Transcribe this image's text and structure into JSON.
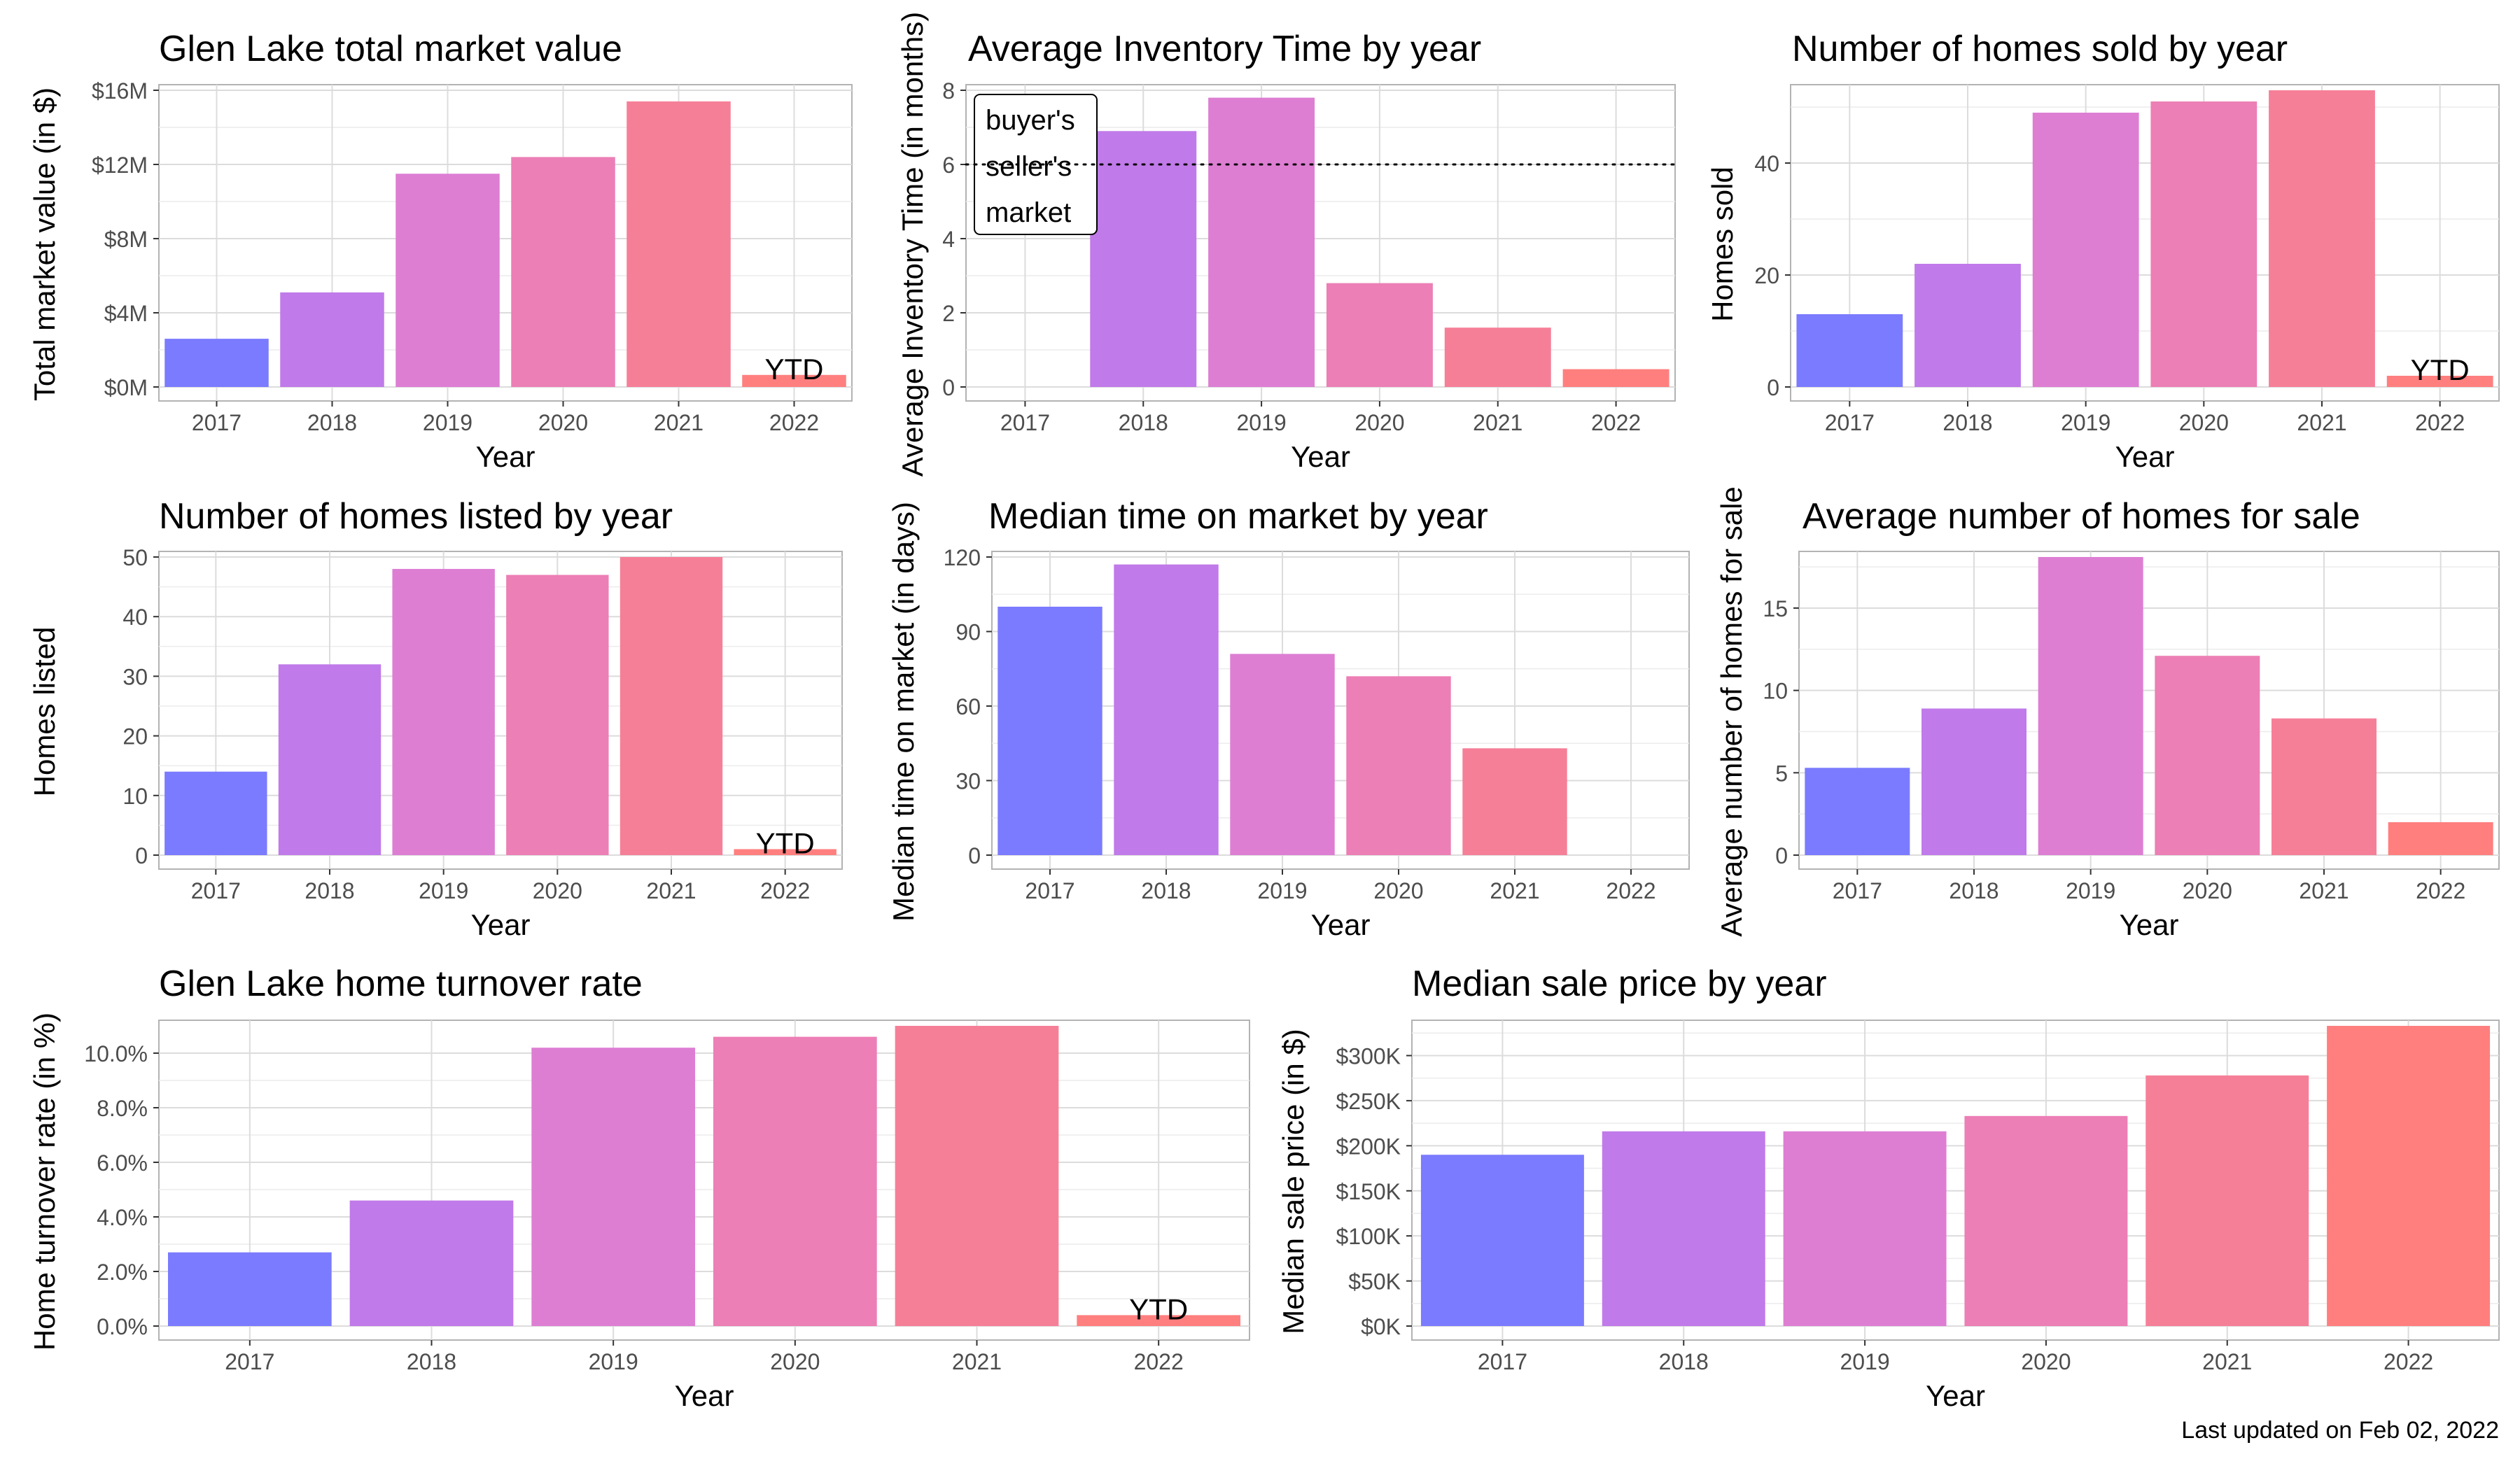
{
  "footer": {
    "updated": "Last updated on Feb 02, 2022"
  },
  "colors": [
    "#7b7bff",
    "#c07ae9",
    "#dd7ed3",
    "#ec7fb5",
    "#f67f98",
    "#ff7f7f"
  ],
  "chart_data": [
    {
      "id": "market-value",
      "type": "bar",
      "title": "Glen Lake total market value",
      "xlabel": "Year",
      "ylabel": "Total market value (in $)",
      "categories": [
        "2017",
        "2018",
        "2019",
        "2020",
        "2021",
        "2022"
      ],
      "values": [
        2600000,
        5100000,
        11500000,
        12400000,
        15400000,
        650000
      ],
      "ylim": [
        0,
        16000000
      ],
      "yticks": [
        0,
        4000000,
        8000000,
        12000000,
        16000000
      ],
      "ytick_labels": [
        "$0M",
        "$4M",
        "$8M",
        "$12M",
        "$16M"
      ],
      "annotation": {
        "label": "YTD",
        "category": "2022"
      }
    },
    {
      "id": "inventory-time",
      "type": "bar",
      "title": "Average Inventory Time by year",
      "xlabel": "Year",
      "ylabel": "Average Inventory Time (in months)",
      "categories": [
        "2017",
        "2018",
        "2019",
        "2020",
        "2021",
        "2022"
      ],
      "values": [
        null,
        6.9,
        7.8,
        2.8,
        1.6,
        0.48
      ],
      "ylim": [
        0,
        8
      ],
      "yticks": [
        0,
        2,
        4,
        6,
        8
      ],
      "ytick_labels": [
        "0",
        "2",
        "4",
        "6",
        "8"
      ],
      "reference_line": {
        "y": 6,
        "style": "dotted"
      },
      "label_box": [
        "buyer's",
        "seller's",
        "market"
      ]
    },
    {
      "id": "homes-sold",
      "type": "bar",
      "title": "Number of homes sold by year",
      "xlabel": "Year",
      "ylabel": "Homes sold",
      "categories": [
        "2017",
        "2018",
        "2019",
        "2020",
        "2021",
        "2022"
      ],
      "values": [
        13,
        22,
        49,
        51,
        53,
        2
      ],
      "ylim": [
        0,
        53
      ],
      "yticks": [
        0,
        20,
        40
      ],
      "ytick_labels": [
        "0",
        "20",
        "40"
      ],
      "annotation": {
        "label": "YTD",
        "category": "2022"
      }
    },
    {
      "id": "homes-listed",
      "type": "bar",
      "title": "Number of homes listed by year",
      "xlabel": "Year",
      "ylabel": "Homes listed",
      "categories": [
        "2017",
        "2018",
        "2019",
        "2020",
        "2021",
        "2022"
      ],
      "values": [
        14,
        32,
        48,
        47,
        50,
        1
      ],
      "ylim": [
        0,
        50
      ],
      "yticks": [
        0,
        10,
        20,
        30,
        40,
        50
      ],
      "ytick_labels": [
        "0",
        "10",
        "20",
        "30",
        "40",
        "50"
      ],
      "annotation": {
        "label": "YTD",
        "category": "2022"
      }
    },
    {
      "id": "time-on-market",
      "type": "bar",
      "title": "Median time on market by year",
      "xlabel": "Year",
      "ylabel": "Median time on market (in days)",
      "categories": [
        "2017",
        "2018",
        "2019",
        "2020",
        "2021",
        "2022"
      ],
      "values": [
        100,
        117,
        81,
        72,
        43,
        null
      ],
      "ylim": [
        0,
        120
      ],
      "yticks": [
        0,
        30,
        60,
        90,
        120
      ],
      "ytick_labels": [
        "0",
        "30",
        "60",
        "90",
        "120"
      ]
    },
    {
      "id": "homes-for-sale",
      "type": "bar",
      "title": "Average  number of homes for sale",
      "xlabel": "Year",
      "ylabel": "Average number of homes for sale",
      "categories": [
        "2017",
        "2018",
        "2019",
        "2020",
        "2021",
        "2022"
      ],
      "values": [
        5.3,
        8.9,
        18.1,
        12.1,
        8.3,
        2.0
      ],
      "ylim": [
        0,
        18.1
      ],
      "yticks": [
        0,
        5,
        10,
        15
      ],
      "ytick_labels": [
        "0",
        "5",
        "10",
        "15"
      ]
    },
    {
      "id": "turnover-rate",
      "type": "bar",
      "title": "Glen Lake home turnover rate",
      "xlabel": "Year",
      "ylabel": "Home turnover rate (in %)",
      "categories": [
        "2017",
        "2018",
        "2019",
        "2020",
        "2021",
        "2022"
      ],
      "values": [
        2.7,
        4.6,
        10.2,
        10.6,
        11.0,
        0.4
      ],
      "ylim": [
        0,
        11.0
      ],
      "yticks": [
        0,
        2,
        4,
        6,
        8,
        10
      ],
      "ytick_labels": [
        "0.0%",
        "2.0%",
        "4.0%",
        "6.0%",
        "8.0%",
        "10.0%"
      ],
      "annotation": {
        "label": "YTD",
        "category": "2022"
      }
    },
    {
      "id": "sale-price",
      "type": "bar",
      "title": "Median sale price by year",
      "xlabel": "Year",
      "ylabel": "Median sale price (in $)",
      "categories": [
        "2017",
        "2018",
        "2019",
        "2020",
        "2021",
        "2022"
      ],
      "values": [
        190000,
        216000,
        216000,
        233000,
        278000,
        333000
      ],
      "ylim": [
        0,
        333000
      ],
      "yticks": [
        0,
        50000,
        100000,
        150000,
        200000,
        250000,
        300000
      ],
      "ytick_labels": [
        "$0K",
        "$50K",
        "$100K",
        "$150K",
        "$200K",
        "$250K",
        "$300K"
      ]
    }
  ]
}
